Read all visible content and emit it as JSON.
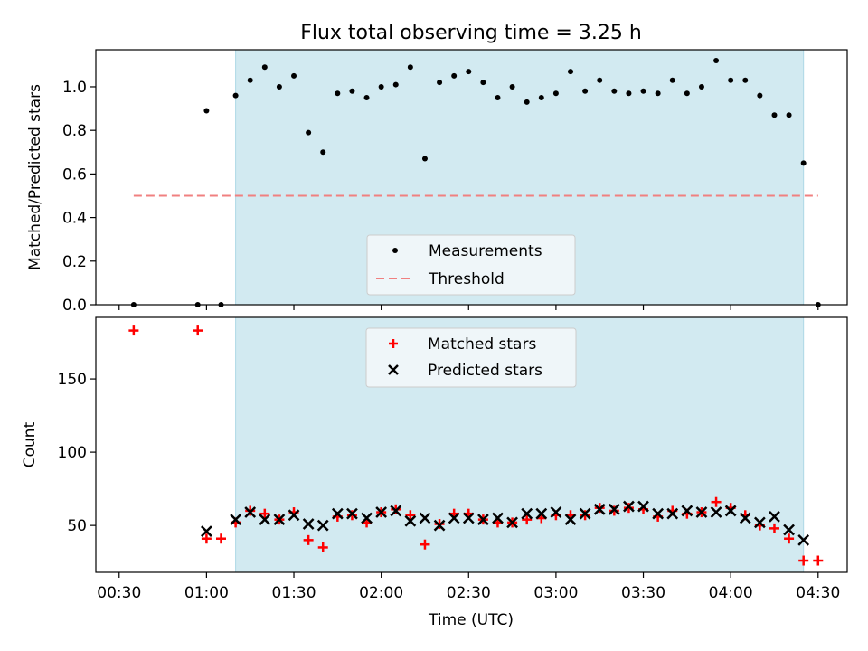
{
  "chart_data": [
    {
      "type": "scatter",
      "title": "Flux total observing time = 3.25 h",
      "xlabel": "",
      "ylabel": "Matched/Predicted stars",
      "ylim": [
        0,
        1.17
      ],
      "yticks": [
        0.0,
        0.2,
        0.4,
        0.6,
        0.8,
        1.0
      ],
      "ytick_labels": [
        "0.0",
        "0.2",
        "0.4",
        "0.6",
        "0.8",
        "1.0"
      ],
      "xlim": [
        "00:22",
        "04:40"
      ],
      "shaded_interval": [
        "01:10",
        "04:25"
      ],
      "threshold": {
        "value": 0.5,
        "x": [
          "00:35",
          "04:30"
        ],
        "color": "#f08080",
        "style": "dashed"
      },
      "legend": {
        "placement": "lower-center",
        "entries": [
          "Measurements",
          "Threshold"
        ]
      },
      "series": [
        {
          "name": "Measurements",
          "marker": "dot",
          "color": "#000000",
          "points": [
            [
              "00:35",
              0.0
            ],
            [
              "00:57",
              0.0
            ],
            [
              "01:00",
              0.89
            ],
            [
              "01:05",
              0.0
            ],
            [
              "01:10",
              0.96
            ],
            [
              "01:15",
              1.03
            ],
            [
              "01:20",
              1.09
            ],
            [
              "01:25",
              1.0
            ],
            [
              "01:30",
              1.05
            ],
            [
              "01:35",
              0.79
            ],
            [
              "01:40",
              0.7
            ],
            [
              "01:45",
              0.97
            ],
            [
              "01:50",
              0.98
            ],
            [
              "01:55",
              0.95
            ],
            [
              "02:00",
              1.0
            ],
            [
              "02:05",
              1.01
            ],
            [
              "02:10",
              1.09
            ],
            [
              "02:15",
              0.67
            ],
            [
              "02:20",
              1.02
            ],
            [
              "02:25",
              1.05
            ],
            [
              "02:30",
              1.07
            ],
            [
              "02:35",
              1.02
            ],
            [
              "02:40",
              0.95
            ],
            [
              "02:45",
              1.0
            ],
            [
              "02:50",
              0.93
            ],
            [
              "02:55",
              0.95
            ],
            [
              "03:00",
              0.97
            ],
            [
              "03:05",
              1.07
            ],
            [
              "03:10",
              0.98
            ],
            [
              "03:15",
              1.03
            ],
            [
              "03:20",
              0.98
            ],
            [
              "03:25",
              0.97
            ],
            [
              "03:30",
              0.98
            ],
            [
              "03:35",
              0.97
            ],
            [
              "03:40",
              1.03
            ],
            [
              "03:45",
              0.97
            ],
            [
              "03:50",
              1.0
            ],
            [
              "03:55",
              1.12
            ],
            [
              "04:00",
              1.03
            ],
            [
              "04:05",
              1.03
            ],
            [
              "04:10",
              0.96
            ],
            [
              "04:15",
              0.87
            ],
            [
              "04:20",
              0.87
            ],
            [
              "04:25",
              0.65
            ],
            [
              "04:30",
              0.0
            ]
          ]
        }
      ]
    },
    {
      "type": "scatter",
      "title": "",
      "xlabel": "Time (UTC)",
      "ylabel": "Count",
      "ylim": [
        18,
        192
      ],
      "yticks": [
        50,
        100,
        150
      ],
      "ytick_labels": [
        "50",
        "100",
        "150"
      ],
      "xlim": [
        "00:22",
        "04:40"
      ],
      "xticks": [
        "00:30",
        "01:00",
        "01:30",
        "02:00",
        "02:30",
        "03:00",
        "03:30",
        "04:00",
        "04:30"
      ],
      "xtick_labels": [
        "00:30",
        "01:00",
        "01:30",
        "02:00",
        "02:30",
        "03:00",
        "03:30",
        "04:00",
        "04:30"
      ],
      "shaded_interval": [
        "01:10",
        "04:25"
      ],
      "legend": {
        "placement": "top-center",
        "entries": [
          "Matched stars",
          "Predicted stars"
        ]
      },
      "series": [
        {
          "name": "Matched stars",
          "marker": "plus",
          "color": "#ff0000",
          "points": [
            [
              "00:35",
              183
            ],
            [
              "00:57",
              183
            ],
            [
              "01:00",
              41
            ],
            [
              "01:05",
              41
            ],
            [
              "01:10",
              52
            ],
            [
              "01:15",
              60
            ],
            [
              "01:20",
              58
            ],
            [
              "01:25",
              54
            ],
            [
              "01:30",
              59
            ],
            [
              "01:35",
              40
            ],
            [
              "01:40",
              35
            ],
            [
              "01:45",
              56
            ],
            [
              "01:50",
              57
            ],
            [
              "01:55",
              52
            ],
            [
              "02:00",
              59
            ],
            [
              "02:05",
              61
            ],
            [
              "02:10",
              57
            ],
            [
              "02:15",
              37
            ],
            [
              "02:20",
              51
            ],
            [
              "02:25",
              58
            ],
            [
              "02:30",
              58
            ],
            [
              "02:35",
              54
            ],
            [
              "02:40",
              52
            ],
            [
              "02:45",
              52
            ],
            [
              "02:50",
              54
            ],
            [
              "02:55",
              55
            ],
            [
              "03:00",
              57
            ],
            [
              "03:05",
              57
            ],
            [
              "03:10",
              57
            ],
            [
              "03:15",
              62
            ],
            [
              "03:20",
              60
            ],
            [
              "03:25",
              62
            ],
            [
              "03:30",
              61
            ],
            [
              "03:35",
              56
            ],
            [
              "03:40",
              60
            ],
            [
              "03:45",
              58
            ],
            [
              "03:50",
              59
            ],
            [
              "03:55",
              66
            ],
            [
              "04:00",
              62
            ],
            [
              "04:05",
              57
            ],
            [
              "04:10",
              50
            ],
            [
              "04:15",
              48
            ],
            [
              "04:20",
              41
            ],
            [
              "04:25",
              26
            ],
            [
              "04:30",
              26
            ]
          ]
        },
        {
          "name": "Predicted stars",
          "marker": "x",
          "color": "#000000",
          "points": [
            [
              "01:00",
              46
            ],
            [
              "01:10",
              54
            ],
            [
              "01:15",
              59
            ],
            [
              "01:20",
              54
            ],
            [
              "01:25",
              54
            ],
            [
              "01:30",
              57
            ],
            [
              "01:35",
              51
            ],
            [
              "01:40",
              50
            ],
            [
              "01:45",
              58
            ],
            [
              "01:50",
              58
            ],
            [
              "01:55",
              55
            ],
            [
              "02:00",
              59
            ],
            [
              "02:05",
              60
            ],
            [
              "02:10",
              53
            ],
            [
              "02:15",
              55
            ],
            [
              "02:20",
              50
            ],
            [
              "02:25",
              55
            ],
            [
              "02:30",
              55
            ],
            [
              "02:35",
              54
            ],
            [
              "02:40",
              55
            ],
            [
              "02:45",
              52
            ],
            [
              "02:50",
              58
            ],
            [
              "02:55",
              58
            ],
            [
              "03:00",
              59
            ],
            [
              "03:05",
              54
            ],
            [
              "03:10",
              58
            ],
            [
              "03:15",
              61
            ],
            [
              "03:20",
              61
            ],
            [
              "03:25",
              63
            ],
            [
              "03:30",
              63
            ],
            [
              "03:35",
              58
            ],
            [
              "03:40",
              58
            ],
            [
              "03:45",
              60
            ],
            [
              "03:50",
              59
            ],
            [
              "03:55",
              59
            ],
            [
              "04:00",
              60
            ],
            [
              "04:05",
              55
            ],
            [
              "04:10",
              52
            ],
            [
              "04:15",
              56
            ],
            [
              "04:20",
              47
            ],
            [
              "04:25",
              40
            ]
          ]
        }
      ]
    }
  ],
  "colors": {
    "shade": "#add8e6",
    "axes": "#000000",
    "legend_bg": "#f5f8fa",
    "legend_border": "#cccccc"
  }
}
